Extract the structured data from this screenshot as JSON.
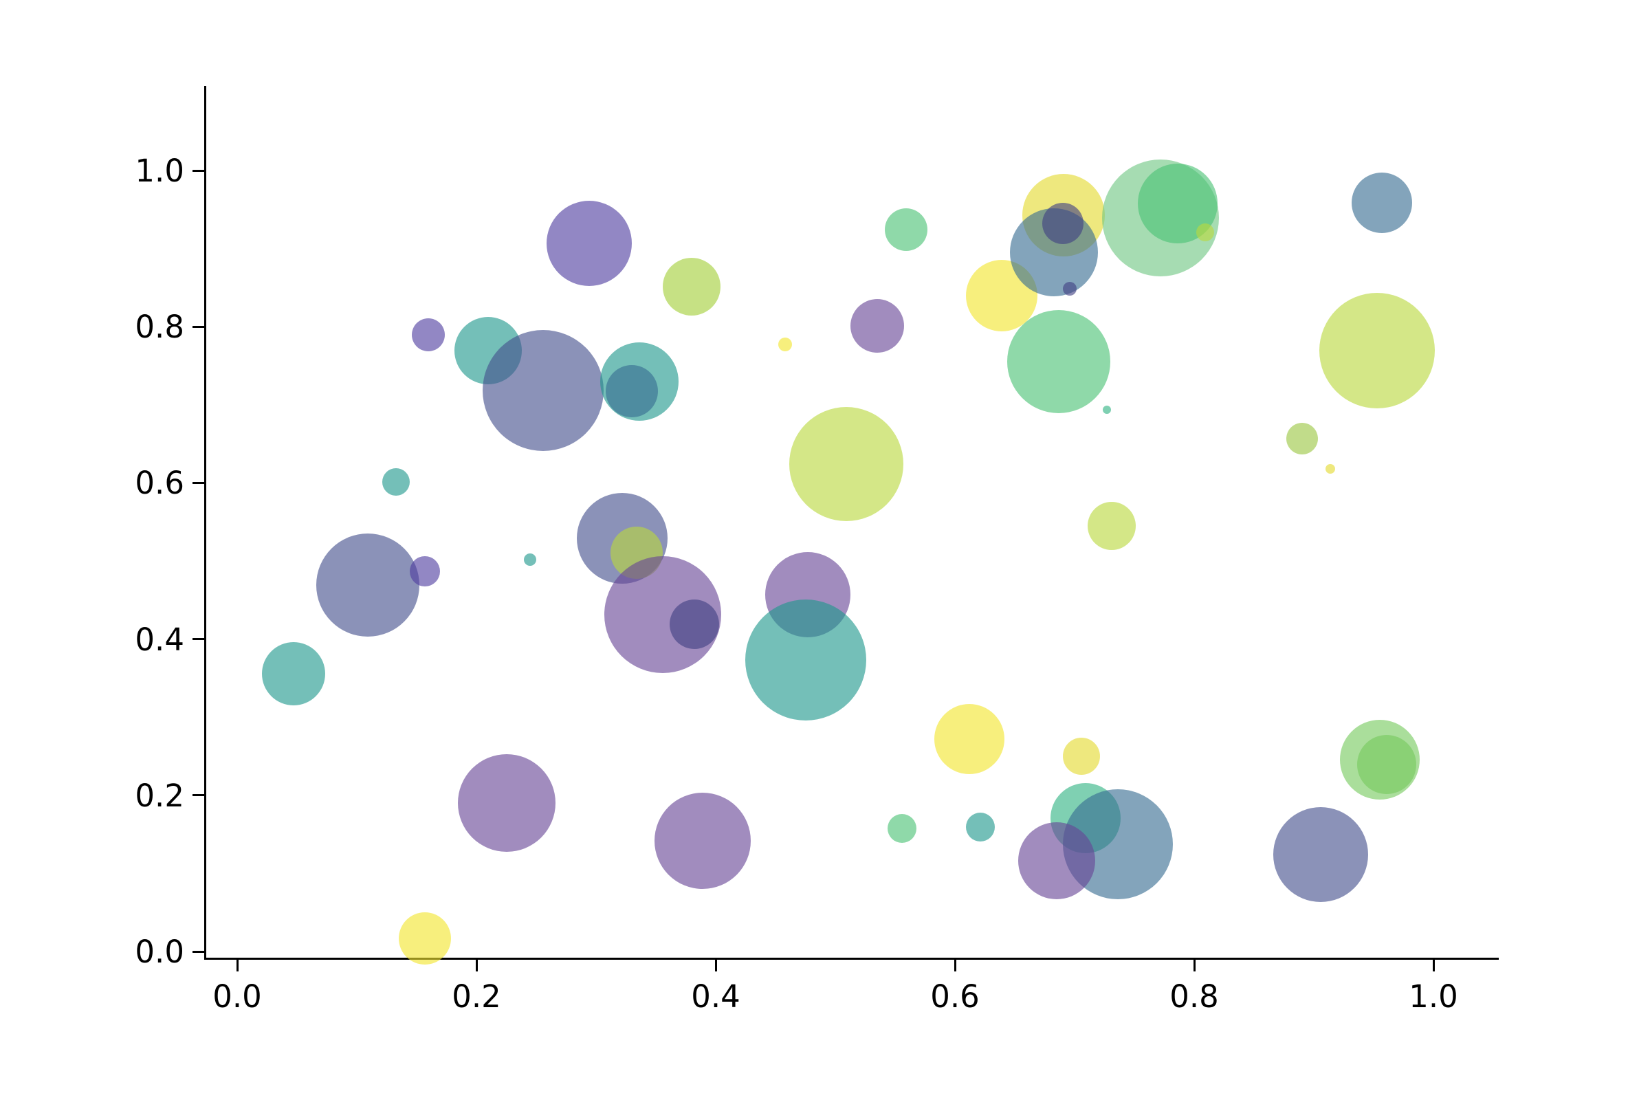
{
  "figure": {
    "background": "#ffffff",
    "spine_color": "#000000"
  },
  "chart_data": {
    "type": "scatter",
    "title": "",
    "subtitle": "",
    "xlabel": "",
    "ylabel": "",
    "legend": null,
    "grid": false,
    "x_axis": {
      "range": [
        0.0,
        1.0
      ],
      "tick_values": [
        0.0,
        0.2,
        0.4,
        0.6,
        0.8,
        1.0
      ],
      "tick_labels": [
        "0.0",
        "0.2",
        "0.4",
        "0.6",
        "0.8",
        "1.0"
      ]
    },
    "y_axis": {
      "range": [
        0.0,
        1.0
      ],
      "tick_values": [
        0.0,
        0.2,
        0.4,
        0.6,
        0.8,
        1.0
      ],
      "tick_labels": [
        "0.0",
        "0.2",
        "0.4",
        "0.6",
        "0.8",
        "1.0"
      ]
    },
    "marker_alpha": 0.62,
    "palette": {
      "purple": "#674596",
      "violet": "#4f3da0",
      "peri": "#444f8c",
      "navy": "#404082",
      "steel": "#376c91",
      "teal": "#1f988c",
      "gteal": "#30b383",
      "green": "#4ac274",
      "ltgreen": "#6fc683",
      "ltgreen2": "#76ca5e",
      "yg": "#b9d83d",
      "yg2": "#9bc642",
      "ygl": "#a3cf38",
      "yellow": "#f2e52d",
      "yellow2": "#e3da2e"
    },
    "points": [
      {
        "x": 0.047,
        "y": 0.356,
        "r": 46,
        "c": "teal"
      },
      {
        "x": 0.109,
        "y": 0.469,
        "r": 75,
        "c": "peri"
      },
      {
        "x": 0.157,
        "y": 0.487,
        "r": 22,
        "c": "violet"
      },
      {
        "x": 0.157,
        "y": 0.017,
        "r": 38,
        "c": "yellow"
      },
      {
        "x": 0.133,
        "y": 0.601,
        "r": 20,
        "c": "teal"
      },
      {
        "x": 0.16,
        "y": 0.79,
        "r": 24,
        "c": "violet"
      },
      {
        "x": 0.21,
        "y": 0.769,
        "r": 49,
        "c": "teal"
      },
      {
        "x": 0.256,
        "y": 0.718,
        "r": 88,
        "c": "peri"
      },
      {
        "x": 0.336,
        "y": 0.73,
        "r": 57,
        "c": "teal"
      },
      {
        "x": 0.33,
        "y": 0.717,
        "r": 38,
        "c": "steel"
      },
      {
        "x": 0.294,
        "y": 0.907,
        "r": 62,
        "c": "violet"
      },
      {
        "x": 0.225,
        "y": 0.19,
        "r": 71,
        "c": "purple"
      },
      {
        "x": 0.245,
        "y": 0.502,
        "r": 9,
        "c": "teal"
      },
      {
        "x": 0.322,
        "y": 0.529,
        "r": 66,
        "c": "peri"
      },
      {
        "x": 0.334,
        "y": 0.511,
        "r": 38,
        "c": "yg"
      },
      {
        "x": 0.356,
        "y": 0.431,
        "r": 85,
        "c": "purple"
      },
      {
        "x": 0.382,
        "y": 0.419,
        "r": 36,
        "c": "navy"
      },
      {
        "x": 0.389,
        "y": 0.142,
        "r": 70,
        "c": "purple"
      },
      {
        "x": 0.38,
        "y": 0.851,
        "r": 42,
        "c": "ygl"
      },
      {
        "x": 0.559,
        "y": 0.924,
        "r": 31,
        "c": "green"
      },
      {
        "x": 0.535,
        "y": 0.801,
        "r": 39,
        "c": "purple"
      },
      {
        "x": 0.458,
        "y": 0.777,
        "r": 10,
        "c": "yellow"
      },
      {
        "x": 0.509,
        "y": 0.624,
        "r": 83,
        "c": "yg"
      },
      {
        "x": 0.477,
        "y": 0.457,
        "r": 62,
        "c": "purple"
      },
      {
        "x": 0.475,
        "y": 0.373,
        "r": 88,
        "c": "teal"
      },
      {
        "x": 0.639,
        "y": 0.84,
        "r": 52,
        "c": "yellow"
      },
      {
        "x": 0.691,
        "y": 0.943,
        "r": 60,
        "c": "yellow2"
      },
      {
        "x": 0.683,
        "y": 0.895,
        "r": 64,
        "c": "steel"
      },
      {
        "x": 0.69,
        "y": 0.932,
        "r": 30,
        "c": "navy"
      },
      {
        "x": 0.696,
        "y": 0.849,
        "r": 10,
        "c": "navy"
      },
      {
        "x": 0.772,
        "y": 0.939,
        "r": 85,
        "c": "ltgreen"
      },
      {
        "x": 0.786,
        "y": 0.958,
        "r": 58,
        "c": "green"
      },
      {
        "x": 0.809,
        "y": 0.921,
        "r": 13,
        "c": "yg"
      },
      {
        "x": 0.687,
        "y": 0.755,
        "r": 75,
        "c": "green"
      },
      {
        "x": 0.727,
        "y": 0.694,
        "r": 6,
        "c": "gteal"
      },
      {
        "x": 0.731,
        "y": 0.545,
        "r": 35,
        "c": "yg"
      },
      {
        "x": 0.612,
        "y": 0.272,
        "r": 51,
        "c": "yellow"
      },
      {
        "x": 0.706,
        "y": 0.25,
        "r": 27,
        "c": "yellow2"
      },
      {
        "x": 0.556,
        "y": 0.158,
        "r": 21,
        "c": "green"
      },
      {
        "x": 0.621,
        "y": 0.159,
        "r": 21,
        "c": "teal"
      },
      {
        "x": 0.709,
        "y": 0.171,
        "r": 51,
        "c": "gteal"
      },
      {
        "x": 0.736,
        "y": 0.137,
        "r": 80,
        "c": "steel"
      },
      {
        "x": 0.685,
        "y": 0.116,
        "r": 56,
        "c": "purple"
      },
      {
        "x": 0.906,
        "y": 0.124,
        "r": 69,
        "c": "peri"
      },
      {
        "x": 0.955,
        "y": 0.246,
        "r": 58,
        "c": "ltgreen2"
      },
      {
        "x": 0.961,
        "y": 0.239,
        "r": 43,
        "c": "ltgreen2"
      },
      {
        "x": 0.957,
        "y": 0.959,
        "r": 44,
        "c": "steel"
      },
      {
        "x": 0.953,
        "y": 0.769,
        "r": 84,
        "c": "yg"
      },
      {
        "x": 0.89,
        "y": 0.657,
        "r": 23,
        "c": "yg2"
      },
      {
        "x": 0.914,
        "y": 0.618,
        "r": 7,
        "c": "yellow2"
      }
    ]
  }
}
